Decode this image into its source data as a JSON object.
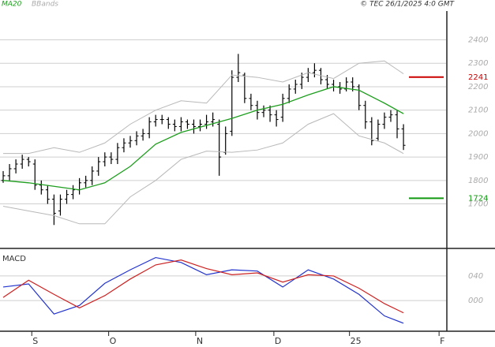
{
  "chart_data": [
    {
      "type": "ohlc",
      "source": "© TEC 26/1/2025 4:0 GMT",
      "x": [
        0,
        1,
        2,
        3,
        4,
        5,
        6,
        7,
        8,
        9,
        10,
        11,
        12,
        13,
        14,
        15,
        16,
        17,
        18,
        19,
        20,
        21,
        22,
        23,
        24,
        25,
        26,
        27,
        28,
        29,
        30,
        31,
        32,
        33,
        34,
        35,
        36,
        37,
        38,
        39,
        40,
        41,
        42,
        43,
        44,
        45,
        46,
        47,
        48,
        49,
        50,
        51,
        52,
        53,
        54,
        55,
        56,
        57,
        58,
        59,
        60,
        61,
        62,
        63
      ],
      "open": [
        1800,
        1820,
        1850,
        1870,
        1890,
        1870,
        1780,
        1760,
        1720,
        1670,
        1720,
        1740,
        1760,
        1790,
        1800,
        1840,
        1880,
        1900,
        1890,
        1940,
        1960,
        1970,
        1990,
        2000,
        2050,
        2060,
        2060,
        2040,
        2030,
        2050,
        2040,
        2030,
        2040,
        2050,
        2040,
        1920,
        2010,
        2240,
        2250,
        2150,
        2120,
        2090,
        2100,
        2080,
        2070,
        2150,
        2190,
        2210,
        2240,
        2260,
        2270,
        2230,
        2210,
        2200,
        2190,
        2220,
        2200,
        2120,
        2050,
        1980,
        2040,
        2070,
        2080,
        2020
      ],
      "high": [
        1840,
        1870,
        1890,
        1910,
        1900,
        1890,
        1800,
        1780,
        1740,
        1740,
        1760,
        1780,
        1810,
        1820,
        1860,
        1900,
        1920,
        1920,
        1960,
        1980,
        1990,
        2010,
        2020,
        2070,
        2080,
        2080,
        2070,
        2060,
        2070,
        2060,
        2060,
        2060,
        2080,
        2090,
        2060,
        2030,
        2270,
        2340,
        2260,
        2170,
        2140,
        2120,
        2120,
        2100,
        2170,
        2210,
        2230,
        2260,
        2280,
        2300,
        2280,
        2250,
        2230,
        2220,
        2240,
        2240,
        2210,
        2140,
        2070,
        2060,
        2090,
        2100,
        2100,
        2040
      ],
      "low": [
        1790,
        1800,
        1830,
        1850,
        1860,
        1760,
        1740,
        1700,
        1610,
        1650,
        1700,
        1720,
        1740,
        1770,
        1780,
        1820,
        1860,
        1870,
        1870,
        1920,
        1940,
        1950,
        1970,
        1980,
        2030,
        2040,
        2020,
        2010,
        2010,
        2020,
        2000,
        2010,
        2020,
        2030,
        1820,
        1910,
        1990,
        2220,
        2130,
        2100,
        2060,
        2070,
        2050,
        2030,
        2050,
        2130,
        2170,
        2190,
        2220,
        2240,
        2210,
        2190,
        2180,
        2170,
        2180,
        2180,
        2100,
        2020,
        1950,
        1970,
        2020,
        2050,
        1980,
        1930
      ],
      "close": [
        1820,
        1850,
        1870,
        1890,
        1880,
        1780,
        1760,
        1720,
        1660,
        1720,
        1740,
        1760,
        1790,
        1800,
        1840,
        1880,
        1900,
        1890,
        1940,
        1960,
        1970,
        1990,
        2000,
        2050,
        2060,
        2060,
        2040,
        2030,
        2050,
        2040,
        2030,
        2040,
        2050,
        2060,
        1900,
        2000,
        2240,
        2260,
        2150,
        2120,
        2090,
        2100,
        2080,
        2060,
        2150,
        2190,
        2210,
        2240,
        2260,
        2270,
        2230,
        2210,
        2200,
        2190,
        2220,
        2200,
        2120,
        2050,
        1970,
        2040,
        2070,
        2080,
        2020,
        1950
      ],
      "bar_color": "#000000",
      "series": [
        {
          "name": "MA20",
          "color": "#1e9e1e",
          "x": [
            0,
            4,
            8,
            12,
            16,
            20,
            24,
            28,
            32,
            36,
            40,
            44,
            48,
            52,
            56,
            60,
            63
          ],
          "values": [
            1800,
            1790,
            1775,
            1760,
            1790,
            1860,
            1955,
            2005,
            2035,
            2065,
            2100,
            2125,
            2165,
            2200,
            2185,
            2130,
            2085
          ]
        },
        {
          "name": "BBands",
          "color": "#b8b8b8",
          "x": [
            0,
            4,
            8,
            12,
            16,
            20,
            24,
            28,
            32,
            36,
            40,
            44,
            48,
            52,
            56,
            60,
            63
          ],
          "upper": [
            1915,
            1915,
            1940,
            1920,
            1960,
            2040,
            2100,
            2140,
            2130,
            2250,
            2240,
            2220,
            2260,
            2235,
            2300,
            2310,
            2255
          ],
          "lower": [
            1690,
            1670,
            1650,
            1615,
            1615,
            1730,
            1800,
            1890,
            1925,
            1920,
            1930,
            1960,
            2040,
            2085,
            1990,
            1960,
            1915
          ]
        }
      ],
      "levels": [
        {
          "value": 2241,
          "color": "#cc0000"
        },
        {
          "value": 1724,
          "color": "#119911"
        }
      ],
      "xlim": [
        -0.5,
        69.7
      ],
      "xticks": [
        {
          "value": 4.5,
          "label": "S"
        },
        {
          "value": 16.6,
          "label": "O"
        },
        {
          "value": 30.3,
          "label": "N"
        },
        {
          "value": 42.6,
          "label": "D"
        },
        {
          "value": 54.5,
          "label": "25"
        },
        {
          "value": 68.6,
          "label": "F"
        }
      ],
      "ylim": [
        1510,
        2570
      ],
      "yticks": [
        1700,
        1800,
        1900,
        2000,
        2100,
        2200,
        2300,
        2400
      ],
      "grid": true
    },
    {
      "type": "line",
      "title": "MACD",
      "series": [
        {
          "color": "#2233cc",
          "x": [
            0,
            4,
            8,
            12,
            16,
            20,
            24,
            28,
            32,
            36,
            40,
            44,
            48,
            52,
            56,
            60,
            63
          ],
          "values": [
            22,
            27,
            -22,
            -8,
            28,
            50,
            70,
            62,
            42,
            50,
            48,
            22,
            50,
            35,
            10,
            -25,
            -37
          ]
        },
        {
          "color": "#cc2222",
          "x": [
            0,
            4,
            8,
            12,
            16,
            20,
            24,
            28,
            32,
            36,
            40,
            44,
            48,
            52,
            56,
            60,
            63
          ],
          "values": [
            5,
            33,
            10,
            -12,
            8,
            35,
            58,
            66,
            52,
            42,
            45,
            30,
            42,
            40,
            20,
            -5,
            -20
          ]
        }
      ],
      "xlim": [
        -0.5,
        69.7
      ],
      "ylim": [
        -50,
        81
      ],
      "yticks": [
        {
          "value": 40,
          "label": "040"
        },
        {
          "value": 0,
          "label": "000"
        }
      ],
      "grid": true
    }
  ]
}
